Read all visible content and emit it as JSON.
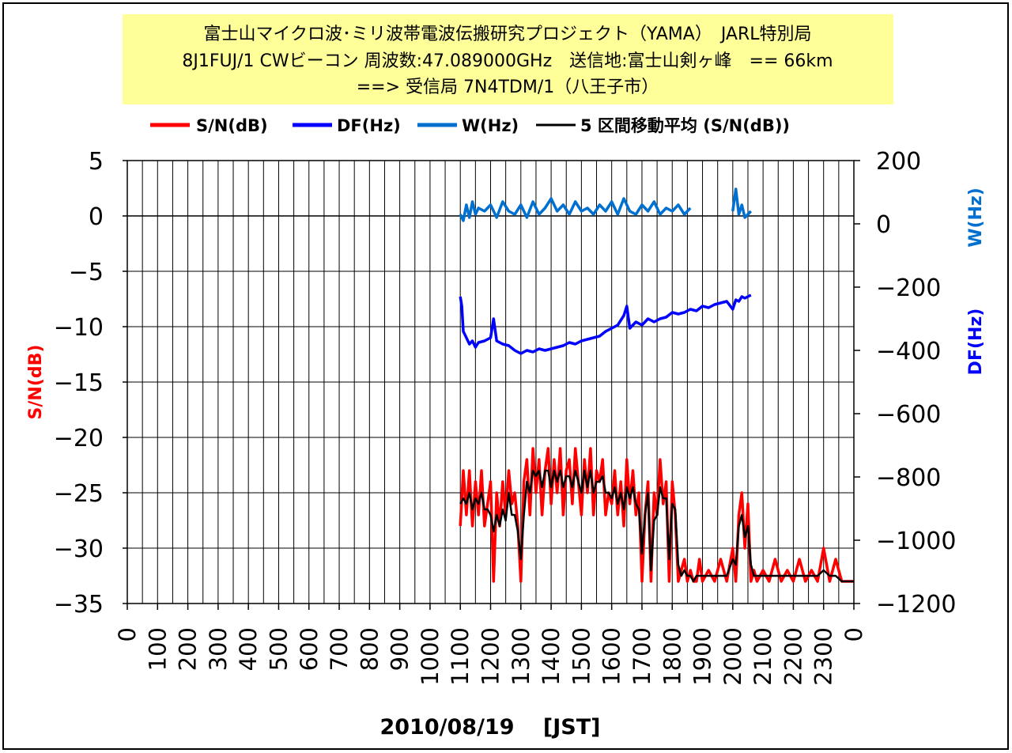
{
  "title": {
    "line1": "富士山マイクロ波･ミリ波帯電波伝搬研究プロジェクト（YAMA）　JARL特別局",
    "line2": "8J1FUJ/1 CWビーコン 周波数:47.089000GHz　送信地:富士山剣ヶ峰　== 66km",
    "line3": "==> 受信局 7N4TDM/1（八王子市）"
  },
  "legend": [
    {
      "label": "S/N(dB)",
      "color": "#ff0000"
    },
    {
      "label": "DF(Hz)",
      "color": "#0000ff"
    },
    {
      "label": "W(Hz)",
      "color": "#0070d0"
    },
    {
      "label": "5 区間移動平均 (S/N(dB))",
      "color": "#000000"
    }
  ],
  "axes": {
    "left_label": "S/N(dB)",
    "right_label_w": "W(Hz)",
    "right_label_df": "DF(Hz)",
    "x_label": "2010/08/19　 [JST]"
  },
  "colors": {
    "sn": "#ff0000",
    "df": "#0000ff",
    "w": "#0070d0",
    "ma": "#000000",
    "title_bg": "#ffff99",
    "left_axis_label": "#ff0000",
    "right_axis_w": "#0070d0",
    "right_axis_df": "#0000ff"
  },
  "chart_data": {
    "type": "line",
    "title": "富士山マイクロ波･ミリ波帯電波伝搬研究プロジェクト（YAMA） JARL特別局 8J1FUJ/1 CWビーコン 周波数:47.089000GHz 送信地:富士山剣ヶ峰 == 66km ==> 受信局 7N4TDM/1（八王子市）",
    "xlabel": "2010/08/19 [JST]",
    "ylabel": "S/N(dB)",
    "y2label": "DF(Hz) / W(Hz)",
    "x_ticks": [
      "0",
      "100",
      "200",
      "300",
      "400",
      "500",
      "600",
      "700",
      "800",
      "900",
      "1000",
      "1100",
      "1200",
      "1300",
      "1400",
      "1500",
      "1600",
      "1700",
      "1800",
      "1900",
      "2000",
      "2100",
      "2200",
      "2300",
      "0"
    ],
    "x_range": [
      0,
      24
    ],
    "ylim": [
      -35,
      5
    ],
    "y_ticks": [
      "5",
      "0",
      "-5",
      "-10",
      "-15",
      "-20",
      "-25",
      "-30",
      "-35"
    ],
    "y2lim": [
      -1200,
      200
    ],
    "y2_ticks": [
      "200",
      "0",
      "-200",
      "-400",
      "-600",
      "-800",
      "-1000",
      "-1200"
    ],
    "grid": true,
    "legend_position": "top",
    "series": [
      {
        "name": "S/N(dB)",
        "axis": "left",
        "x": [
          11.0,
          11.1,
          11.2,
          11.3,
          11.4,
          11.5,
          11.6,
          11.7,
          11.8,
          11.9,
          12.0,
          12.1,
          12.2,
          12.3,
          12.4,
          12.5,
          12.6,
          12.7,
          12.8,
          12.9,
          13.0,
          13.1,
          13.2,
          13.3,
          13.4,
          13.5,
          13.6,
          13.7,
          13.8,
          13.9,
          14.0,
          14.1,
          14.2,
          14.3,
          14.4,
          14.5,
          14.6,
          14.7,
          14.8,
          14.9,
          15.0,
          15.1,
          15.2,
          15.3,
          15.4,
          15.5,
          15.6,
          15.7,
          15.8,
          15.9,
          16.0,
          16.1,
          16.2,
          16.3,
          16.4,
          16.5,
          16.6,
          16.7,
          16.8,
          16.9,
          17.0,
          17.1,
          17.2,
          17.3,
          17.4,
          17.5,
          17.6,
          17.7,
          17.8,
          17.9,
          18.0,
          18.1,
          18.2,
          18.3,
          18.4,
          18.5,
          18.6,
          18.7,
          18.8,
          18.9,
          19.0,
          19.2,
          19.4,
          19.6,
          19.8,
          20.0,
          20.1,
          20.2,
          20.3,
          20.4,
          20.5,
          20.6,
          20.7,
          20.8,
          21.0,
          21.2,
          21.4,
          21.6,
          21.8,
          22.0,
          22.2,
          22.4,
          22.6,
          22.8,
          23.0,
          23.2,
          23.4,
          23.6,
          23.8,
          24.0
        ],
        "y": [
          -28,
          -23,
          -27,
          -23,
          -28,
          -24,
          -27,
          -23,
          -28,
          -26,
          -24,
          -33,
          -25,
          -28,
          -24,
          -27,
          -23,
          -26,
          -25,
          -28,
          -33,
          -24,
          -22,
          -27,
          -21,
          -25,
          -22,
          -27,
          -23,
          -21,
          -26,
          -22,
          -25,
          -21,
          -27,
          -23,
          -22,
          -26,
          -21,
          -24,
          -27,
          -22,
          -25,
          -21,
          -27,
          -23,
          -24,
          -22,
          -27,
          -25,
          -26,
          -23,
          -27,
          -24,
          -28,
          -22,
          -26,
          -23,
          -27,
          -25,
          -33,
          -27,
          -24,
          -33,
          -25,
          -27,
          -22,
          -26,
          -24,
          -33,
          -24,
          -27,
          -33,
          -32,
          -31,
          -33,
          -32,
          -33,
          -33,
          -31,
          -33,
          -32,
          -33,
          -31,
          -33,
          -30,
          -33,
          -27,
          -25,
          -30,
          -26,
          -33,
          -32,
          -33,
          -32,
          -33,
          -31,
          -33,
          -32,
          -33,
          -31,
          -33,
          -32,
          -33,
          -30,
          -33,
          -31,
          -33,
          -33,
          -33
        ]
      },
      {
        "name": "DF(Hz)",
        "axis": "right",
        "x": [
          11.0,
          11.05,
          11.1,
          11.2,
          11.3,
          11.4,
          11.5,
          11.6,
          11.8,
          12.0,
          12.1,
          12.2,
          12.4,
          12.6,
          12.8,
          13.0,
          13.2,
          13.4,
          13.6,
          13.8,
          14.0,
          14.2,
          14.4,
          14.6,
          14.8,
          15.0,
          15.2,
          15.4,
          15.6,
          15.8,
          16.0,
          16.2,
          16.4,
          16.5,
          16.6,
          16.8,
          17.0,
          17.2,
          17.4,
          17.6,
          17.8,
          18.0,
          18.2,
          18.4,
          18.6,
          18.8,
          19.0,
          19.2,
          19.4,
          19.6,
          19.8,
          20.0,
          20.1,
          20.2,
          20.3,
          20.4,
          20.6
        ],
        "y": [
          -230,
          -260,
          -340,
          -360,
          -380,
          -370,
          -390,
          -375,
          -370,
          -360,
          -300,
          -370,
          -380,
          -385,
          -400,
          -410,
          -400,
          -405,
          -395,
          -400,
          -395,
          -390,
          -385,
          -375,
          -380,
          -370,
          -365,
          -360,
          -355,
          -340,
          -330,
          -320,
          -290,
          -260,
          -330,
          -310,
          -320,
          -300,
          -310,
          -300,
          -295,
          -280,
          -285,
          -280,
          -270,
          -275,
          -260,
          -265,
          -255,
          -250,
          -245,
          -270,
          -240,
          -245,
          -230,
          -235,
          -225
        ]
      },
      {
        "name": "W(Hz)",
        "axis": "right",
        "x": [
          11.0,
          11.1,
          11.2,
          11.3,
          11.4,
          11.5,
          11.6,
          11.8,
          12.0,
          12.2,
          12.4,
          12.6,
          12.8,
          13.0,
          13.2,
          13.4,
          13.6,
          13.8,
          14.0,
          14.2,
          14.4,
          14.6,
          14.8,
          15.0,
          15.2,
          15.4,
          15.6,
          15.8,
          16.0,
          16.2,
          16.4,
          16.6,
          16.8,
          17.0,
          17.2,
          17.4,
          17.6,
          17.8,
          18.0,
          18.2,
          18.4,
          18.6,
          20.0,
          20.1,
          20.2,
          20.3,
          20.4,
          20.6
        ],
        "y": [
          30,
          10,
          60,
          20,
          70,
          30,
          50,
          40,
          60,
          20,
          70,
          40,
          30,
          60,
          20,
          70,
          30,
          50,
          80,
          40,
          60,
          30,
          70,
          40,
          50,
          30,
          60,
          40,
          70,
          30,
          80,
          40,
          30,
          60,
          40,
          70,
          30,
          50,
          40,
          60,
          30,
          50,
          40,
          110,
          30,
          60,
          20,
          40
        ]
      },
      {
        "name": "5 区間移動平均 (S/N(dB))",
        "axis": "left",
        "x": [
          11.0,
          11.1,
          11.2,
          11.3,
          11.4,
          11.5,
          11.6,
          11.7,
          11.8,
          11.9,
          12.0,
          12.1,
          12.2,
          12.3,
          12.4,
          12.5,
          12.6,
          12.7,
          12.8,
          12.9,
          13.0,
          13.1,
          13.2,
          13.3,
          13.4,
          13.5,
          13.6,
          13.7,
          13.8,
          13.9,
          14.0,
          14.1,
          14.2,
          14.3,
          14.4,
          14.5,
          14.6,
          14.7,
          14.8,
          14.9,
          15.0,
          15.1,
          15.2,
          15.3,
          15.4,
          15.5,
          15.6,
          15.7,
          15.8,
          15.9,
          16.0,
          16.1,
          16.2,
          16.3,
          16.4,
          16.5,
          16.6,
          16.7,
          16.8,
          16.9,
          17.0,
          17.1,
          17.2,
          17.3,
          17.4,
          17.5,
          17.6,
          17.7,
          17.8,
          17.9,
          18.0,
          18.1,
          18.2,
          18.3,
          18.4,
          18.5,
          18.6,
          18.7,
          18.8,
          18.9,
          19.0,
          19.2,
          19.4,
          19.6,
          19.8,
          20.0,
          20.1,
          20.2,
          20.3,
          20.4,
          20.5,
          20.6,
          20.7,
          20.8,
          21.0,
          21.2,
          21.4,
          21.6,
          21.8,
          22.0,
          22.2,
          22.4,
          22.6,
          22.8,
          23.0,
          23.2,
          23.4,
          23.6,
          23.8,
          24.0
        ],
        "y": [
          -26,
          -25.5,
          -26,
          -25,
          -26.5,
          -25.5,
          -26,
          -25,
          -26.5,
          -26.5,
          -27,
          -28.5,
          -27,
          -28,
          -26.5,
          -27.5,
          -25,
          -27,
          -27,
          -28.5,
          -31,
          -27,
          -24,
          -25,
          -23,
          -23.5,
          -23,
          -24.5,
          -23,
          -23,
          -24.5,
          -23,
          -24,
          -23,
          -24.5,
          -23.5,
          -23.5,
          -24.5,
          -23,
          -24,
          -25,
          -23,
          -24.5,
          -23,
          -25,
          -24,
          -24,
          -23.5,
          -25,
          -25,
          -25.5,
          -24.5,
          -26,
          -25,
          -26.5,
          -24.5,
          -25.5,
          -24.5,
          -26,
          -26.5,
          -30.5,
          -27,
          -25,
          -32,
          -27.5,
          -27,
          -24.5,
          -25.5,
          -25.5,
          -31,
          -26,
          -26.5,
          -31.5,
          -32.5,
          -32,
          -32.5,
          -32.5,
          -33,
          -32.5,
          -32.5,
          -32.5,
          -32.5,
          -32.5,
          -32.5,
          -32.5,
          -31,
          -31.5,
          -28,
          -27,
          -29,
          -28,
          -31.5,
          -32.5,
          -32.5,
          -32.5,
          -32.5,
          -32.5,
          -32.5,
          -32.5,
          -32.5,
          -32.5,
          -32.5,
          -32.5,
          -32.5,
          -32,
          -32.5,
          -32.5,
          -33,
          -33,
          -33
        ]
      }
    ]
  }
}
